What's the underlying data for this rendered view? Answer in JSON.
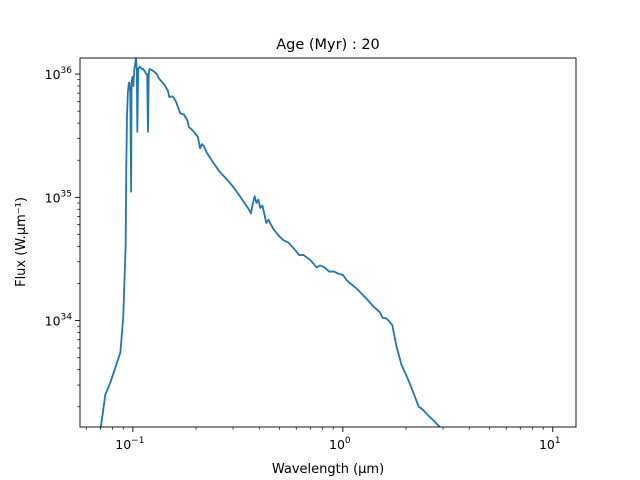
{
  "chart_data": {
    "type": "line",
    "title": "Age (Myr) : 20",
    "xlabel": "Wavelength (μm)",
    "ylabel": "Flux (W.μm⁻¹)",
    "xscale": "log",
    "yscale": "log",
    "xlim": [
      0.056,
      12.9
    ],
    "ylim": [
      1.37e+33,
      1.35e+36
    ],
    "grid": false,
    "legend": "none",
    "line_color": "#1f77b4",
    "xticks": [
      {
        "value": 0.1,
        "base": "10",
        "exp": "−1"
      },
      {
        "value": 1,
        "base": "10",
        "exp": "0"
      },
      {
        "value": 10,
        "base": "10",
        "exp": "1"
      }
    ],
    "yticks": [
      {
        "value": 1e+34,
        "base": "10",
        "exp": "34"
      },
      {
        "value": 1e+35,
        "base": "10",
        "exp": "35"
      },
      {
        "value": 1e+36,
        "base": "10",
        "exp": "36"
      }
    ],
    "series": [
      {
        "x": [
          0.0704,
          0.0739,
          0.0784,
          0.0834,
          0.0872,
          0.09,
          0.0924,
          0.093,
          0.0938,
          0.0947,
          0.0957,
          0.0962,
          0.0972,
          0.0981,
          0.0986,
          0.0991,
          0.0996,
          0.1001,
          0.1006,
          0.1016,
          0.1025,
          0.1035,
          0.104,
          0.1045,
          0.105,
          0.106,
          0.108,
          0.11,
          0.112,
          0.114,
          0.116,
          0.117,
          0.118,
          0.119,
          0.12,
          0.123,
          0.126,
          0.13,
          0.133,
          0.137,
          0.142,
          0.147,
          0.149,
          0.153,
          0.156,
          0.161,
          0.168,
          0.175,
          0.182,
          0.185,
          0.189,
          0.195,
          0.204,
          0.209,
          0.213,
          0.218,
          0.225,
          0.24,
          0.26,
          0.28,
          0.3,
          0.32,
          0.34,
          0.355,
          0.365,
          0.372,
          0.38,
          0.388,
          0.396,
          0.404,
          0.414,
          0.432,
          0.442,
          0.45,
          0.465,
          0.48,
          0.5,
          0.52,
          0.55,
          0.58,
          0.62,
          0.65,
          0.7,
          0.75,
          0.78,
          0.82,
          0.86,
          0.91,
          0.95,
          1.0,
          1.05,
          1.15,
          1.3,
          1.4,
          1.5,
          1.55,
          1.6,
          1.65,
          1.72,
          1.8,
          1.9,
          2.05,
          2.15,
          2.25,
          2.3,
          2.4,
          2.55,
          2.7,
          2.9
        ],
        "y": [
          1.37e+33,
          2.5e+33,
          3.2e+33,
          4.4e+33,
          5.5e+33,
          1.07e+34,
          4.1e+34,
          1.7e+35,
          4.6e+35,
          7.1e+35,
          8.5e+35,
          8.5e+35,
          7.1e+35,
          1.11e+35,
          8.2e+35,
          9.1e+35,
          9.5e+35,
          8.8e+35,
          8e+35,
          1.1e+36,
          1.2e+36,
          1.35e+36,
          1.2e+36,
          1e+36,
          3.4e+35,
          1.1e+36,
          1.15e+36,
          1.1e+36,
          1.1e+36,
          1.05e+36,
          1e+36,
          1e+36,
          3.4e+35,
          1e+36,
          1.1e+36,
          1.08e+36,
          1.05e+36,
          1e+36,
          9.2e+35,
          8.7e+35,
          8.1e+35,
          7.3e+35,
          6.5e+35,
          6.6e+35,
          6.5e+35,
          5.9e+35,
          4.8e+35,
          4.7e+35,
          4.2e+35,
          3.7e+35,
          3.6e+35,
          3.4e+35,
          3.1e+35,
          2.5e+35,
          2.7e+35,
          2.6e+35,
          2.3e+35,
          1.94e+35,
          1.6e+35,
          1.4e+35,
          1.22e+35,
          1.05e+35,
          9e+34,
          8.1e+34,
          7.4e+34,
          8.8e+34,
          1.02e+35,
          9e+34,
          9.6e+34,
          8.2e+34,
          8.6e+34,
          6.2e+34,
          6.6e+34,
          6.2e+34,
          5.6e+34,
          5.2e+34,
          4.8e+34,
          4.5e+34,
          4.3e+34,
          3.9e+34,
          3.4e+34,
          3.4e+34,
          3.1e+34,
          2.7e+34,
          2.8e+34,
          2.7e+34,
          2.5e+34,
          2.5e+34,
          2.4e+34,
          2.35e+34,
          2.1e+34,
          1.85e+34,
          1.5e+34,
          1.3e+34,
          1.17e+34,
          1.05e+34,
          1.05e+34,
          1e+34,
          9.2e+33,
          6.2e+33,
          4.4e+33,
          3.3e+33,
          2.7e+33,
          2.2e+33,
          2e+33,
          1.9e+33,
          1.7e+33,
          1.55e+33,
          1.37e+33
        ]
      }
    ]
  }
}
